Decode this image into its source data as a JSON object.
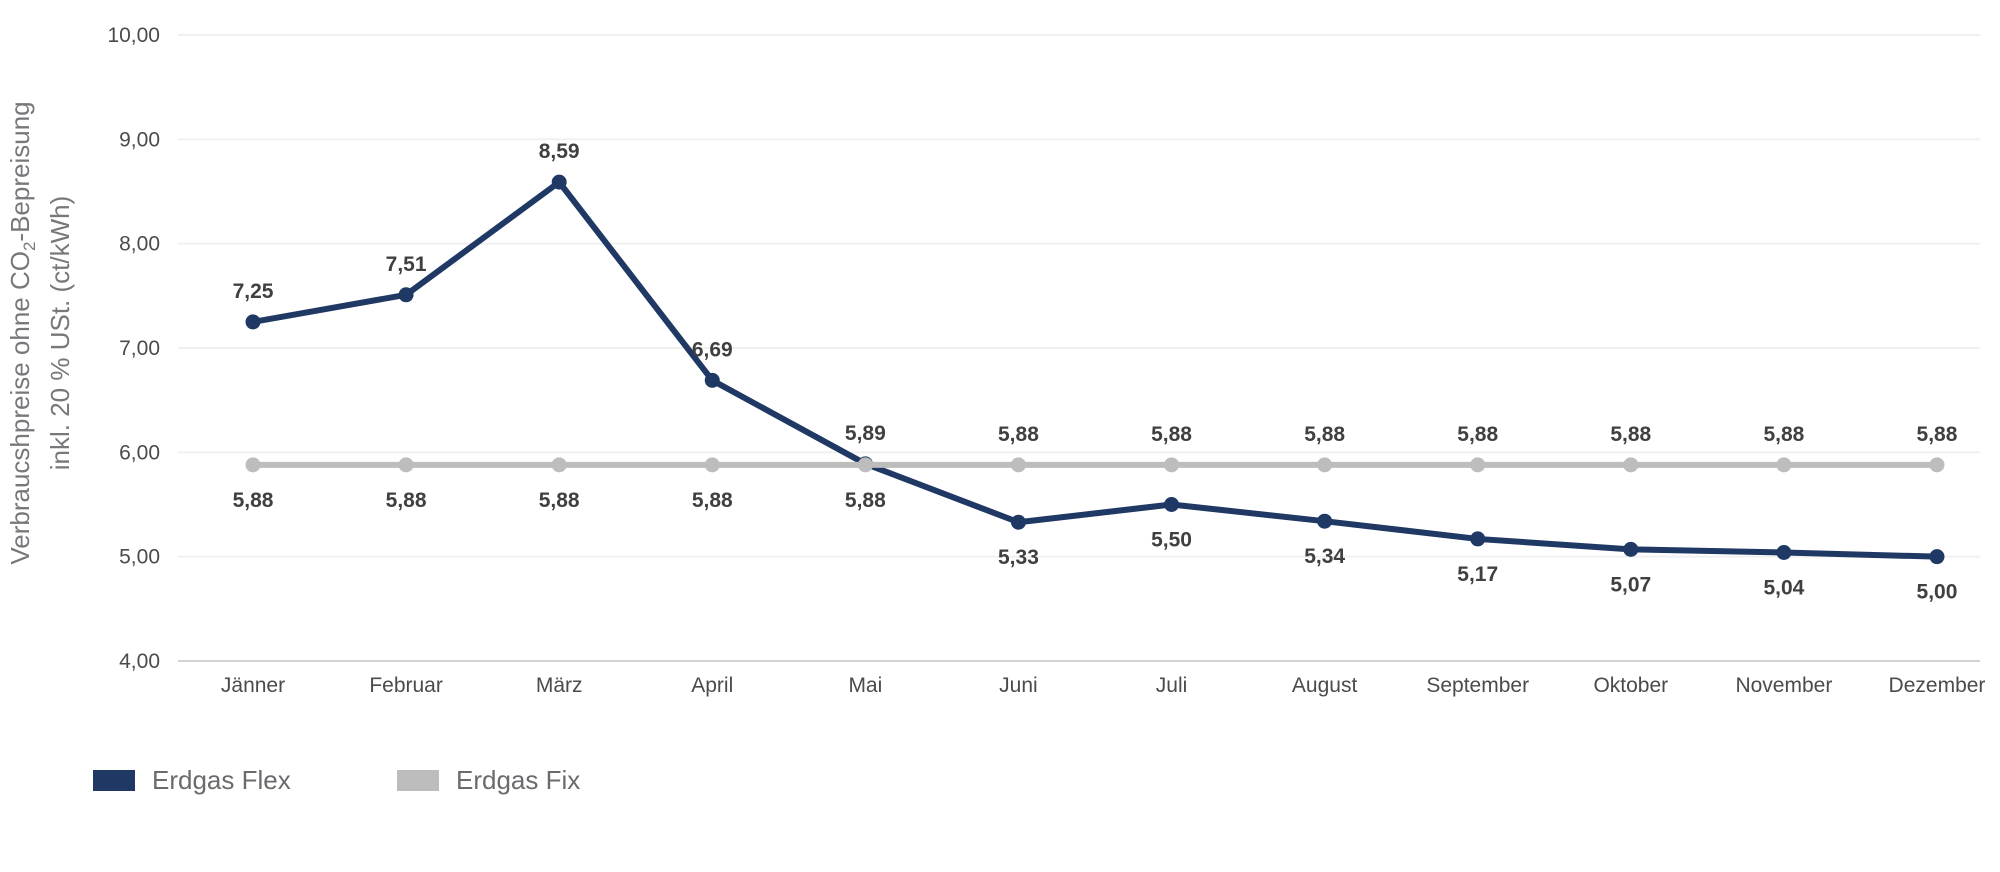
{
  "chart_data": {
    "type": "line",
    "title": "",
    "categories": [
      "Jänner",
      "Februar",
      "März",
      "April",
      "Mai",
      "Juni",
      "Juli",
      "August",
      "September",
      "Oktober",
      "November",
      "Dezember"
    ],
    "series": [
      {
        "name": "Erdgas Flex",
        "color": "#1F3864",
        "values": [
          7.25,
          7.51,
          8.59,
          6.69,
          5.89,
          5.33,
          5.5,
          5.34,
          5.17,
          5.07,
          5.04,
          5.0
        ],
        "labels": [
          "7,25",
          "7,51",
          "8,59",
          "6,69",
          "5,89",
          "5,33",
          "5,50",
          "5,34",
          "5,17",
          "5,07",
          "5,04",
          "5,00"
        ],
        "label_positions": [
          "above",
          "above",
          "above",
          "above",
          "above",
          "below",
          "below",
          "below",
          "below",
          "below",
          "below",
          "below"
        ]
      },
      {
        "name": "Erdgas Fix",
        "color": "#BDBDBD",
        "values": [
          5.88,
          5.88,
          5.88,
          5.88,
          5.88,
          5.88,
          5.88,
          5.88,
          5.88,
          5.88,
          5.88,
          5.88
        ],
        "labels": [
          "5,88",
          "5,88",
          "5,88",
          "5,88",
          "5,88",
          "5,88",
          "5,88",
          "5,88",
          "5,88",
          "5,88",
          "5,88",
          "5,88"
        ],
        "label_positions": [
          "below",
          "below",
          "below",
          "below",
          "below",
          "above",
          "above",
          "above",
          "above",
          "above",
          "above",
          "above"
        ]
      }
    ],
    "ylim": [
      4,
      10
    ],
    "yticks": [
      {
        "value": 10,
        "label": "10,00"
      },
      {
        "value": 9,
        "label": "9,00"
      },
      {
        "value": 8,
        "label": "8,00"
      },
      {
        "value": 7,
        "label": "7,00"
      },
      {
        "value": 6,
        "label": "6,00"
      },
      {
        "value": 5,
        "label": "5,00"
      },
      {
        "value": 4,
        "label": "4,00"
      }
    ],
    "ylabel": {
      "part1": "Verbraucshpreise ohne CO",
      "sub": "2",
      "part2": "-Bepreisung",
      "line2": "inkl. 20 % USt. (ct/kWh)"
    },
    "xlabel": "",
    "grid": true,
    "legend_position": "bottom-left",
    "colors": {
      "grid": "#F0F0F0",
      "axis_line": "#D2D2D2",
      "value_label": "#404040",
      "tick_label": "#4B4B4B",
      "axis_title": "#77787B",
      "legend_text": "#6A6B6E"
    }
  }
}
